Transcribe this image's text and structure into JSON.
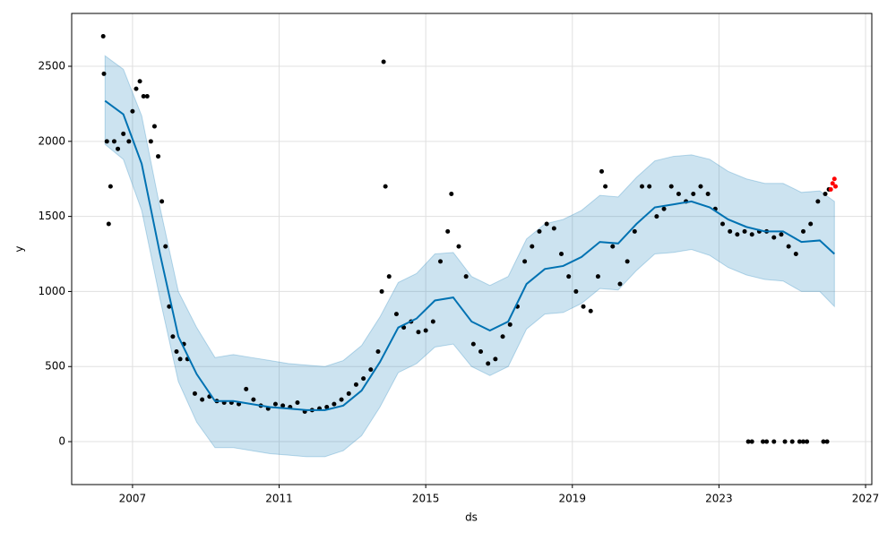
{
  "chart_data": {
    "type": "forecast",
    "xlabel": "ds",
    "ylabel": "y",
    "xlim": [
      2005.34,
      2027.17
    ],
    "xticks": [
      2007,
      2011,
      2015,
      2019,
      2023,
      2027
    ],
    "ylim": [
      -286,
      2852
    ],
    "yticks": [
      0,
      500,
      1000,
      1500,
      2000,
      2500
    ],
    "grid": true,
    "x": [
      2006.25,
      2006.75,
      2007.25,
      2007.75,
      2008.25,
      2008.75,
      2009.25,
      2009.75,
      2010.25,
      2010.75,
      2011.25,
      2011.75,
      2012.25,
      2012.75,
      2013.25,
      2013.75,
      2014.25,
      2014.75,
      2015.25,
      2015.75,
      2016.25,
      2016.75,
      2017.25,
      2017.75,
      2018.25,
      2018.75,
      2019.25,
      2019.75,
      2020.25,
      2020.75,
      2021.25,
      2021.75,
      2022.25,
      2022.75,
      2023.25,
      2023.75,
      2024.25,
      2024.75,
      2025.25,
      2025.75,
      2026.15
    ],
    "series": [
      {
        "color": "#0072B2",
        "values": [
          2270,
          2180,
          1850,
          1250,
          700,
          450,
          270,
          270,
          250,
          230,
          220,
          210,
          210,
          240,
          340,
          530,
          760,
          820,
          940,
          960,
          800,
          740,
          800,
          1050,
          1150,
          1170,
          1230,
          1330,
          1320,
          1450,
          1560,
          1580,
          1600,
          1560,
          1480,
          1430,
          1400,
          1400,
          1330,
          1340,
          1250
        ]
      }
    ],
    "band": {
      "color": "#0072B2",
      "upper": [
        2570,
        2480,
        2170,
        1560,
        1000,
        760,
        560,
        580,
        560,
        540,
        520,
        510,
        500,
        540,
        640,
        830,
        1060,
        1120,
        1250,
        1260,
        1100,
        1040,
        1100,
        1350,
        1450,
        1480,
        1540,
        1640,
        1630,
        1760,
        1870,
        1900,
        1910,
        1880,
        1800,
        1750,
        1720,
        1720,
        1660,
        1670,
        1600
      ],
      "lower": [
        1980,
        1880,
        1540,
        950,
        400,
        130,
        -40,
        -40,
        -60,
        -80,
        -90,
        -100,
        -100,
        -60,
        40,
        230,
        460,
        520,
        630,
        650,
        500,
        440,
        500,
        750,
        850,
        860,
        920,
        1020,
        1010,
        1140,
        1250,
        1260,
        1280,
        1240,
        1160,
        1110,
        1080,
        1070,
        1000,
        1000,
        900
      ]
    },
    "points": [
      {
        "color": "#000000",
        "x": [
          2006.2,
          2006.22,
          2006.3,
          2006.35,
          2006.4,
          2006.5,
          2006.6,
          2006.75,
          2006.9,
          2007.0,
          2007.1,
          2007.2,
          2007.3,
          2007.4,
          2007.5,
          2007.6,
          2007.7,
          2007.8,
          2007.9,
          2008.0,
          2008.1,
          2008.2,
          2008.3,
          2008.4,
          2008.5,
          2008.7,
          2008.9,
          2009.1,
          2009.3,
          2009.5,
          2009.7,
          2009.9,
          2010.1,
          2010.3,
          2010.5,
          2010.7,
          2010.9,
          2011.1,
          2011.3,
          2011.5,
          2011.7,
          2011.9,
          2012.1,
          2012.3,
          2012.5,
          2012.7,
          2012.9,
          2013.1,
          2013.3,
          2013.5,
          2013.7,
          2013.8,
          2013.85,
          2013.9,
          2014.0,
          2014.2,
          2014.4,
          2014.6,
          2014.8,
          2015.0,
          2015.2,
          2015.4,
          2015.6,
          2015.7,
          2015.9,
          2016.1,
          2016.3,
          2016.5,
          2016.7,
          2016.9,
          2017.1,
          2017.3,
          2017.5,
          2017.7,
          2017.9,
          2018.1,
          2018.3,
          2018.5,
          2018.7,
          2018.9,
          2019.1,
          2019.3,
          2019.5,
          2019.7,
          2019.8,
          2019.9,
          2020.1,
          2020.3,
          2020.5,
          2020.7,
          2020.9,
          2021.1,
          2021.3,
          2021.5,
          2021.7,
          2021.9,
          2022.1,
          2022.3,
          2022.5,
          2022.7,
          2022.9,
          2023.1,
          2023.3,
          2023.5,
          2023.7,
          2023.9,
          2024.1,
          2024.3,
          2024.5,
          2024.7,
          2024.9,
          2025.1,
          2025.3,
          2025.5,
          2025.7,
          2025.9,
          2026.0,
          2023.8,
          2023.9,
          2024.2,
          2024.3,
          2024.5,
          2024.8,
          2025.0,
          2025.2,
          2025.3,
          2025.4,
          2025.85,
          2025.95
        ],
        "values": [
          2700,
          2450,
          2000,
          1450,
          1700,
          2000,
          1950,
          2050,
          2000,
          2200,
          2350,
          2400,
          2300,
          2300,
          2000,
          2100,
          1900,
          1600,
          1300,
          900,
          700,
          600,
          550,
          650,
          550,
          320,
          280,
          300,
          270,
          260,
          260,
          250,
          350,
          280,
          240,
          220,
          250,
          240,
          230,
          260,
          200,
          210,
          220,
          230,
          250,
          280,
          320,
          380,
          420,
          480,
          600,
          1000,
          2530,
          1700,
          1100,
          850,
          760,
          800,
          730,
          740,
          800,
          1200,
          1400,
          1650,
          1300,
          1100,
          650,
          600,
          520,
          550,
          700,
          780,
          900,
          1200,
          1300,
          1400,
          1450,
          1420,
          1250,
          1100,
          1000,
          900,
          870,
          1100,
          1800,
          1700,
          1300,
          1050,
          1200,
          1400,
          1700,
          1700,
          1500,
          1550,
          1700,
          1650,
          1600,
          1650,
          1700,
          1650,
          1550,
          1450,
          1400,
          1380,
          1400,
          1380,
          1400,
          1400,
          1360,
          1380,
          1300,
          1250,
          1400,
          1450,
          1600,
          1650,
          1680,
          0,
          0,
          0,
          0,
          0,
          0,
          0,
          0,
          0,
          0,
          0,
          0
        ]
      },
      {
        "color": "#ff0000",
        "x": [
          2026.05,
          2026.1,
          2026.15,
          2026.18
        ],
        "values": [
          1680,
          1720,
          1750,
          1700
        ]
      }
    ]
  }
}
